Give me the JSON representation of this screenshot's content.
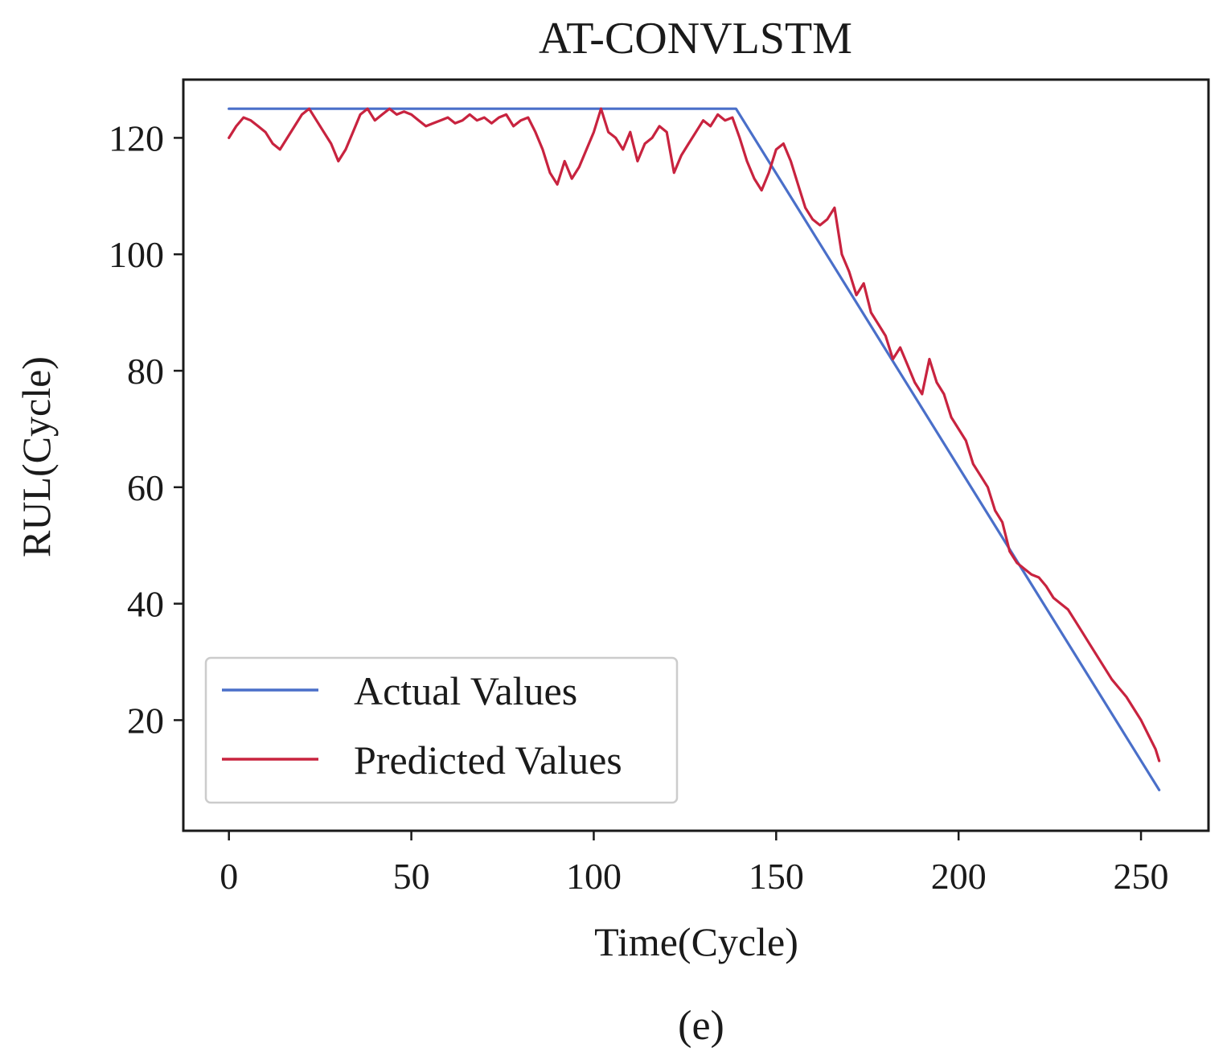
{
  "chart_data": {
    "type": "line",
    "title": "AT-CONVLSTM",
    "xlabel": "Time(Cycle)",
    "ylabel": "RUL(Cycle)",
    "caption": "(e)",
    "xlim": [
      -12.5,
      268.5
    ],
    "ylim": [
      1,
      130
    ],
    "xticks": [
      0,
      50,
      100,
      150,
      200,
      250
    ],
    "yticks": [
      20,
      40,
      60,
      80,
      100,
      120
    ],
    "xtick_labels": [
      "0",
      "50",
      "100",
      "150",
      "200",
      "250"
    ],
    "ytick_labels": [
      "20",
      "40",
      "60",
      "80",
      "100",
      "120"
    ],
    "legend": {
      "location": "lower-left",
      "entries": [
        "Actual Values",
        "Predicted Values"
      ]
    },
    "series": [
      {
        "name": "Actual Values",
        "color": "#4a6fc9",
        "x": [
          0,
          139,
          255
        ],
        "y": [
          125,
          125,
          8
        ]
      },
      {
        "name": "Predicted Values",
        "color": "#c8233f",
        "x": [
          0,
          2,
          4,
          6,
          8,
          10,
          12,
          14,
          16,
          18,
          20,
          22,
          24,
          26,
          28,
          30,
          32,
          34,
          36,
          38,
          40,
          42,
          44,
          46,
          48,
          50,
          52,
          54,
          56,
          58,
          60,
          62,
          64,
          66,
          68,
          70,
          72,
          74,
          76,
          78,
          80,
          82,
          84,
          86,
          88,
          90,
          92,
          94,
          96,
          98,
          100,
          102,
          104,
          106,
          108,
          110,
          112,
          114,
          116,
          118,
          120,
          122,
          124,
          126,
          128,
          130,
          132,
          134,
          136,
          138,
          140,
          142,
          144,
          146,
          148,
          150,
          152,
          154,
          156,
          158,
          160,
          162,
          164,
          166,
          168,
          170,
          172,
          174,
          176,
          178,
          180,
          182,
          184,
          186,
          188,
          190,
          192,
          194,
          196,
          198,
          200,
          202,
          204,
          206,
          208,
          210,
          212,
          214,
          216,
          218,
          220,
          222,
          224,
          226,
          228,
          230,
          232,
          234,
          236,
          238,
          240,
          242,
          244,
          246,
          248,
          250,
          252,
          254,
          255
        ],
        "y": [
          120,
          122,
          123.5,
          123,
          122,
          121,
          119,
          118,
          120,
          122,
          124,
          125,
          123,
          121,
          119,
          116,
          118,
          121,
          124,
          125,
          123,
          124,
          125,
          124,
          124.5,
          124,
          123,
          122,
          122.5,
          123,
          123.5,
          122.5,
          123,
          124,
          123,
          123.5,
          122.5,
          123.5,
          124,
          122,
          123,
          123.5,
          121,
          118,
          114,
          112,
          116,
          113,
          115,
          118,
          121,
          125,
          121,
          120,
          118,
          121,
          116,
          119,
          120,
          122,
          121,
          114,
          117,
          119,
          121,
          123,
          122,
          124,
          123,
          123.5,
          120,
          116,
          113,
          111,
          114,
          118,
          119,
          116,
          112,
          108,
          106,
          105,
          106,
          108,
          100,
          97,
          93,
          95,
          90,
          88,
          86,
          82,
          84,
          81,
          78,
          76,
          82,
          78,
          76,
          72,
          70,
          68,
          64,
          62,
          60,
          56,
          54,
          49,
          47,
          46,
          45,
          44.5,
          43,
          41,
          40,
          39,
          37,
          35,
          33,
          31,
          29,
          27,
          25.5,
          24,
          22,
          20,
          17.5,
          15,
          13
        ]
      }
    ]
  }
}
